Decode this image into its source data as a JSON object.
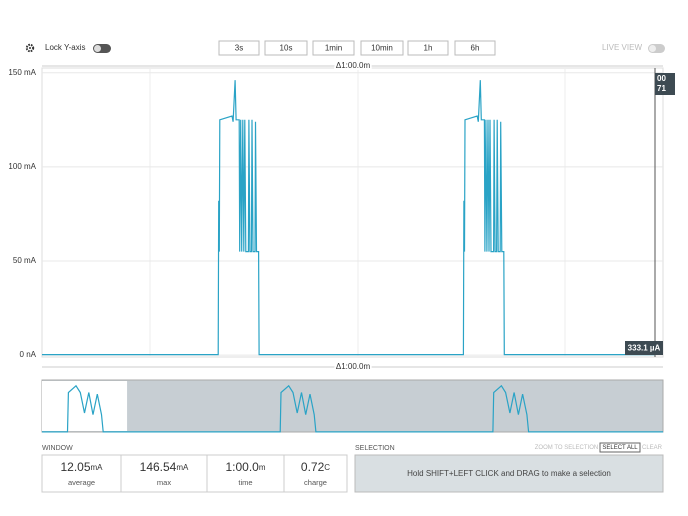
{
  "toolbar": {
    "lock_label": "Lock Y-axis",
    "buttons": [
      "3s",
      "10s",
      "1min",
      "10min",
      "1h",
      "6h"
    ],
    "live_view": "LIVE VIEW"
  },
  "chart_data": {
    "type": "line",
    "delta_top": "Δ1:00.0m",
    "delta_bottom": "Δ1:00.0m",
    "xlim": [
      0,
      60
    ],
    "ylim": [
      -1,
      152.5
    ],
    "yticks": [
      {
        "value": 0,
        "label": "0 nA"
      },
      {
        "value": 50,
        "label": "50 mA"
      },
      {
        "value": 100,
        "label": "100 mA"
      },
      {
        "value": 150,
        "label": "150 mA"
      }
    ],
    "grid": true,
    "color": "#2aa3c6",
    "x": [
      0,
      17.25,
      17.3,
      17.35,
      17.4,
      18.6,
      18.7,
      18.9,
      19.0,
      19.3,
      19.35,
      19.45,
      19.55,
      19.65,
      19.75,
      19.85,
      19.95,
      20.2,
      20.25,
      20.35,
      20.5,
      20.55,
      20.65,
      20.85,
      20.9,
      21.0,
      21.2,
      21.25,
      41.25,
      41.3,
      41.35,
      41.4,
      42.6,
      42.7,
      42.9,
      43.0,
      43.3,
      43.35,
      43.45,
      43.55,
      43.65,
      43.75,
      43.85,
      43.95,
      44.2,
      44.25,
      44.35,
      44.5,
      44.55,
      44.65,
      44.85,
      44.9,
      45.0,
      45.2,
      45.25,
      60
    ],
    "values": [
      0.3,
      0.3,
      82,
      55,
      125,
      127,
      124,
      146,
      125,
      125,
      55,
      125,
      55,
      125,
      55,
      125,
      55,
      55,
      125,
      55,
      55,
      125,
      55,
      55,
      124,
      55,
      55,
      0.3,
      0.3,
      82,
      55,
      125,
      127,
      124,
      146,
      125,
      125,
      55,
      125,
      55,
      125,
      55,
      125,
      55,
      55,
      125,
      55,
      55,
      125,
      55,
      55,
      124,
      55,
      55,
      0.3,
      0.3
    ],
    "cursor_flag": [
      "00",
      "71"
    ],
    "cursor_value": "333.1 µA"
  },
  "overview": {
    "type": "line",
    "xlim": [
      0,
      7.3
    ],
    "ylim": [
      0,
      155
    ],
    "window": [
      0,
      1
    ],
    "color": "#2aa3c6",
    "x": [
      0,
      0.3,
      0.31,
      0.4,
      0.45,
      0.5,
      0.55,
      0.6,
      0.65,
      0.7,
      0.72,
      2.8,
      2.81,
      2.9,
      2.95,
      3.0,
      3.05,
      3.1,
      3.15,
      3.2,
      3.22,
      5.3,
      5.31,
      5.4,
      5.45,
      5.5,
      5.55,
      5.6,
      5.65,
      5.7,
      5.72,
      7.3
    ],
    "values": [
      0.3,
      0.3,
      125,
      146,
      125,
      60,
      125,
      55,
      120,
      55,
      0.3,
      0.3,
      125,
      146,
      125,
      60,
      125,
      55,
      120,
      55,
      0.3,
      0.3,
      125,
      146,
      125,
      60,
      125,
      55,
      120,
      55,
      0.3,
      0.3
    ]
  },
  "window": {
    "title": "WINDOW",
    "stats": [
      {
        "value": "12.05",
        "unit": "mA",
        "label": "average"
      },
      {
        "value": "146.54",
        "unit": "mA",
        "label": "max"
      },
      {
        "value": "1:00.0",
        "unit": "m",
        "label": "time"
      },
      {
        "value": "0.72",
        "unit": "C",
        "label": "charge"
      }
    ]
  },
  "selection": {
    "title": "SELECTION",
    "buttons": [
      "ZOOM TO SELECTION",
      "SELECT ALL",
      "CLEAR"
    ],
    "hint": "Hold SHIFT+LEFT CLICK and DRAG to make a selection"
  }
}
